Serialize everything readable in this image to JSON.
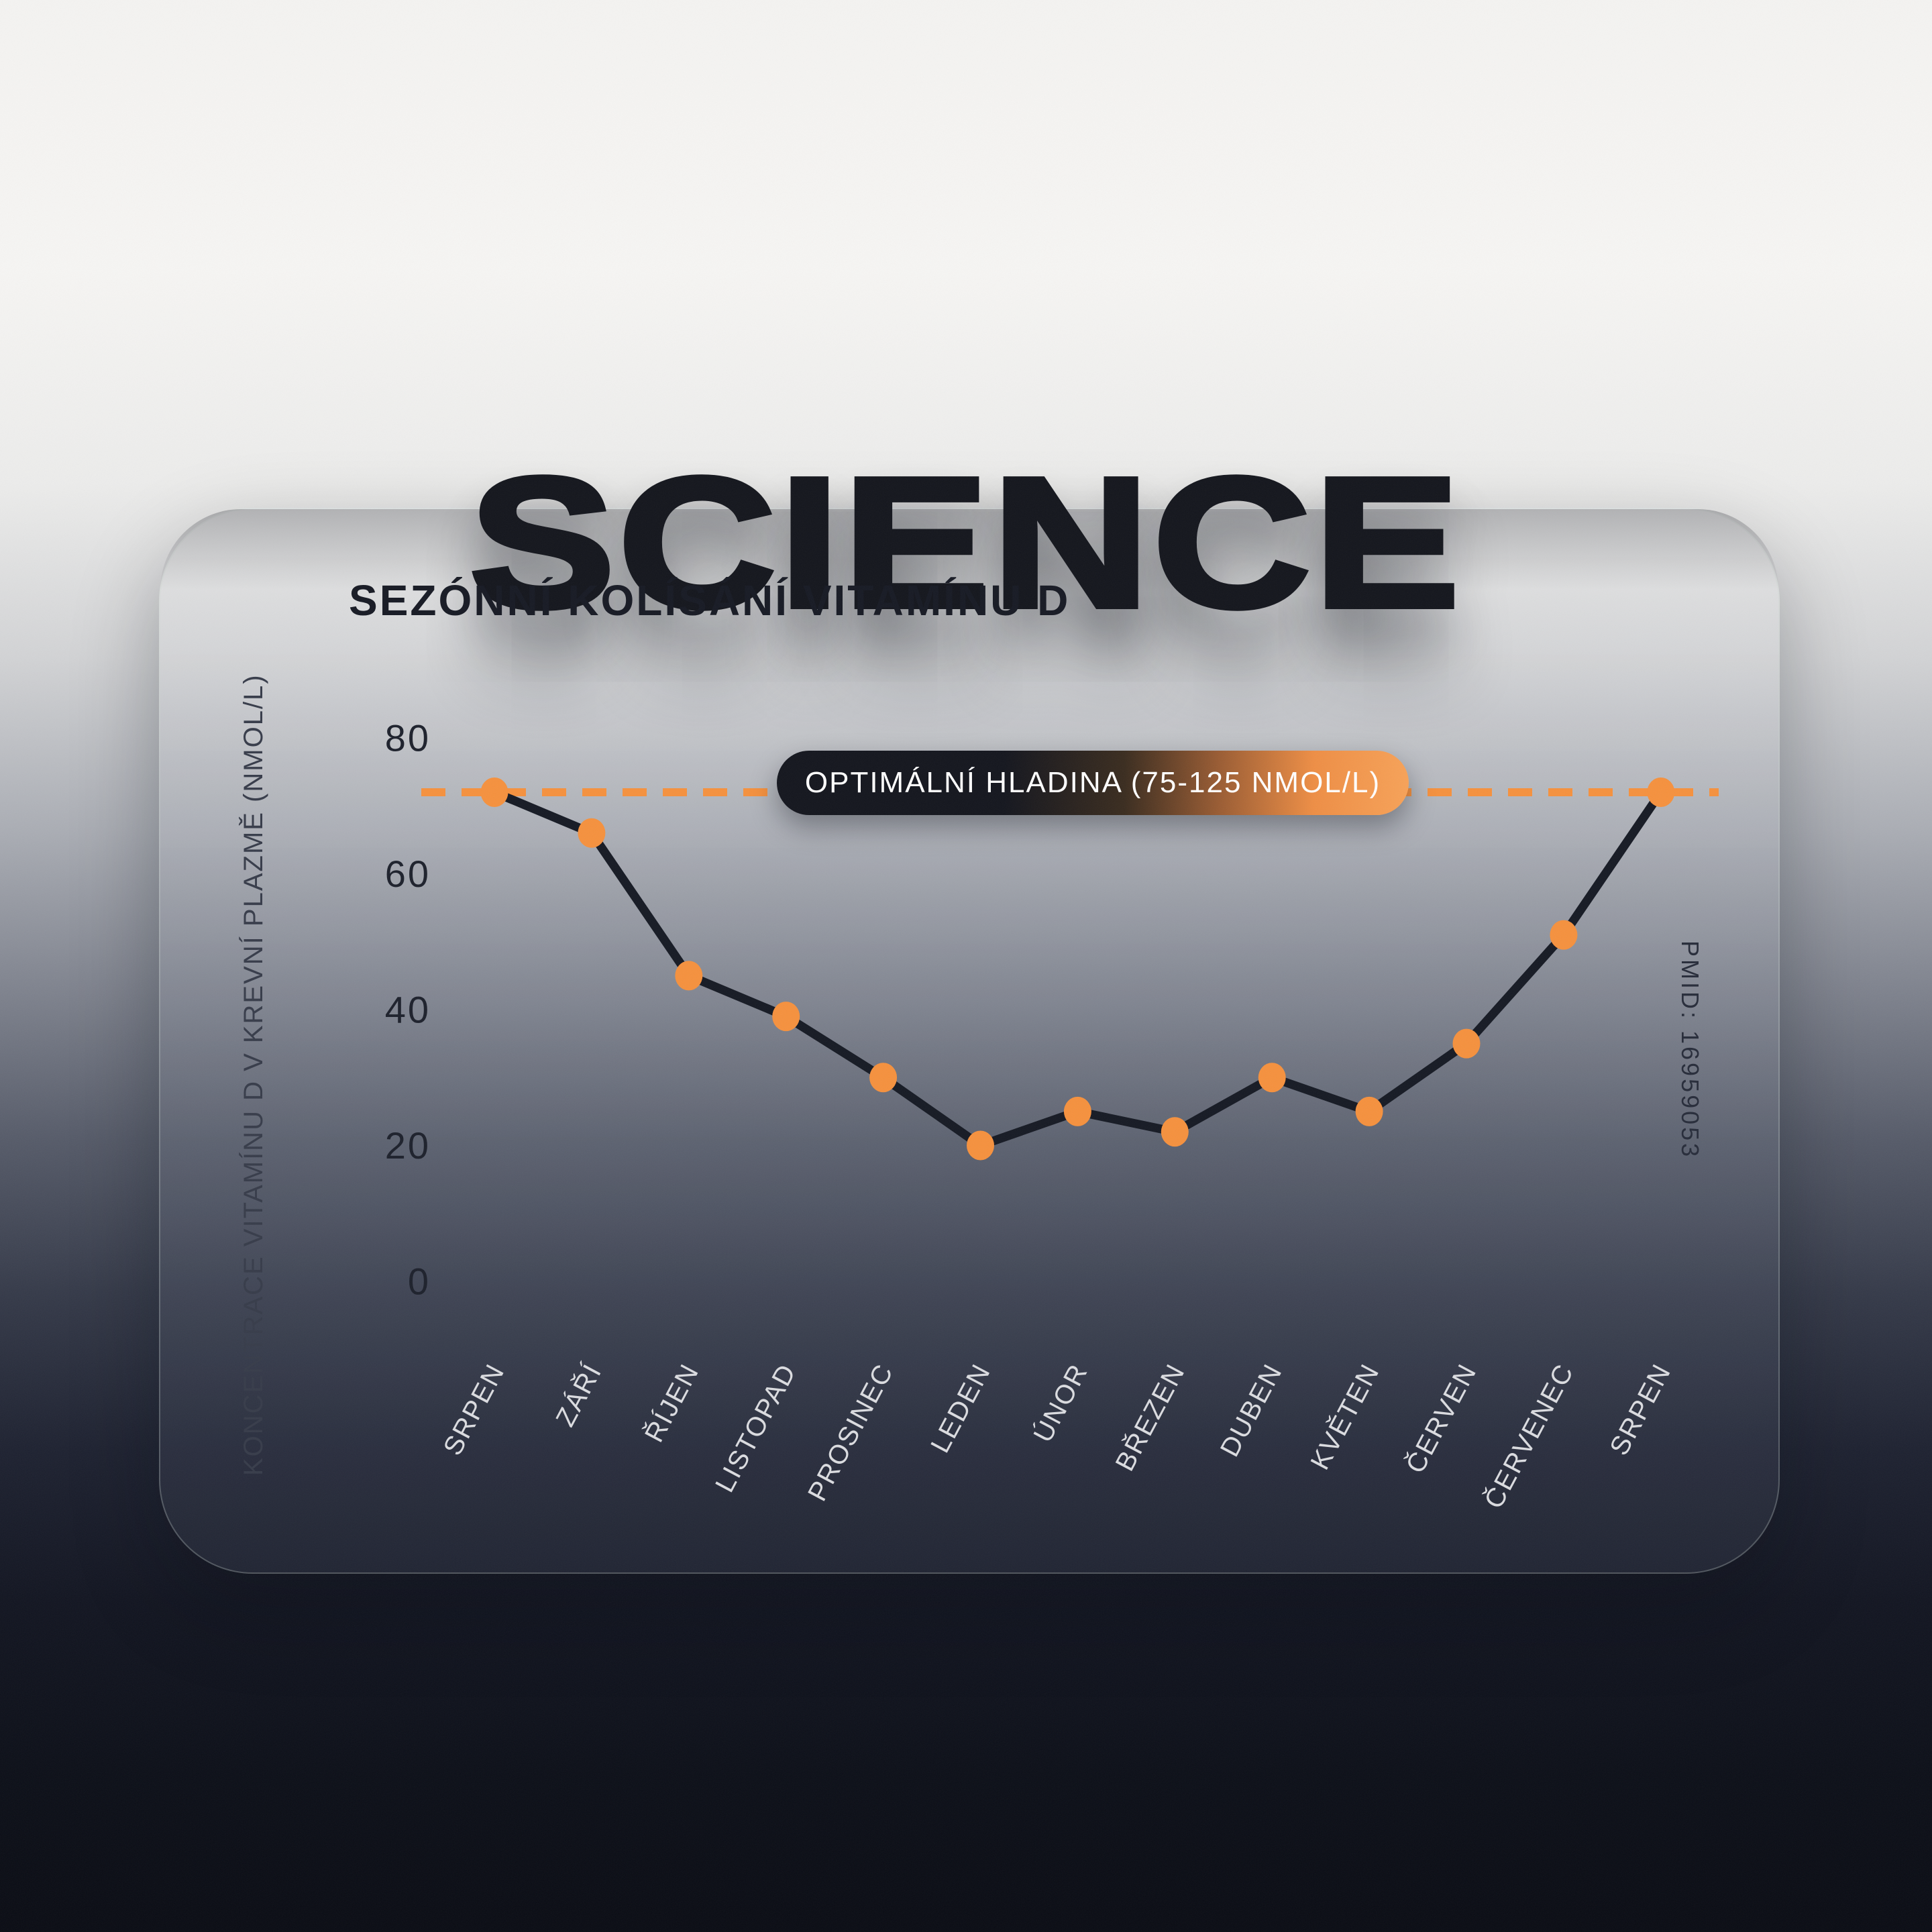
{
  "header": {
    "title": "SCIENCE"
  },
  "card": {
    "title": "SEZÓNNÍ KOLÍSÁNÍ VITAMÍNU D",
    "source_note": "PMID: 16959053"
  },
  "chart_data": {
    "type": "line",
    "title": "SEZÓNNÍ KOLÍSÁNÍ VITAMÍNU D",
    "xlabel": "",
    "ylabel": "KONCENTRACE VITAMÍNU D V KREVNÍ PLAZMĚ (NMOL/L)",
    "categories": [
      "SRPEN",
      "ZÁŘÍ",
      "ŘÍJEN",
      "LISTOPAD",
      "PROSINEC",
      "LEDEN",
      "ÚNOR",
      "BŘEZEN",
      "DUBEN",
      "KVĚTEN",
      "ČERVEN",
      "ČERVENEC",
      "SRPEN"
    ],
    "values": [
      72,
      66,
      45,
      39,
      30,
      20,
      25,
      22,
      30,
      25,
      35,
      51,
      72
    ],
    "yticks": [
      80,
      60,
      40,
      20,
      0
    ],
    "ylim": [
      0,
      88
    ],
    "grid": false,
    "legend": null,
    "annotation": {
      "label": "OPTIMÁLNÍ HLADINA (75-125 NMOL/L)",
      "line_value": 72,
      "line_style": "dashed"
    },
    "colors": {
      "accent_orange": "#F5913E",
      "series_line": "#161A24",
      "x_label_light": "#DBDCE0",
      "y_label_dark": "#1D212C"
    }
  }
}
